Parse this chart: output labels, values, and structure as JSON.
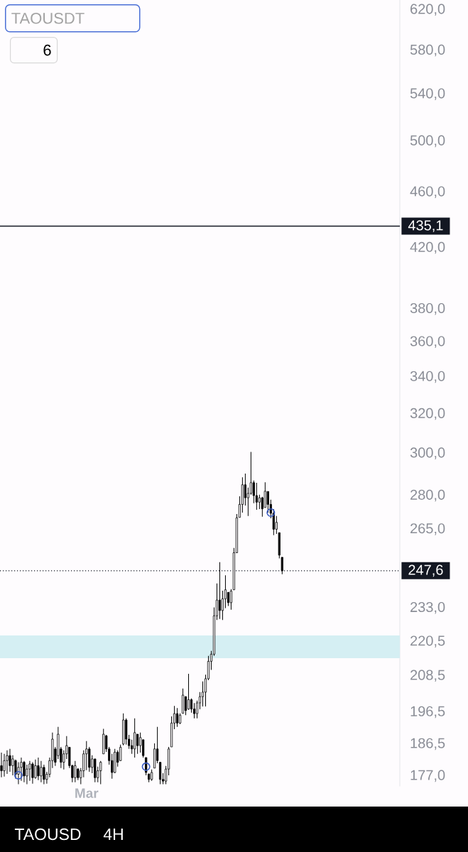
{
  "chart_data": {
    "type": "candlestick",
    "title": "TAOUSDT",
    "categories": [
      null,
      null,
      null,
      null,
      null,
      null,
      null,
      null,
      null,
      null,
      null,
      null,
      null,
      null,
      null,
      null,
      null,
      null,
      null,
      null,
      null,
      null,
      null,
      null,
      null,
      null,
      null,
      null,
      null,
      null,
      "Mar",
      null,
      null,
      null,
      null,
      null,
      null,
      null,
      null,
      null,
      null,
      null,
      null,
      null,
      null,
      null,
      null,
      null,
      null,
      null,
      null,
      null,
      null,
      null,
      null,
      null,
      null,
      null,
      null,
      null,
      null,
      null,
      null,
      null,
      null,
      null,
      null,
      null,
      null,
      null,
      null,
      null,
      null,
      null,
      null,
      null,
      null,
      null,
      null,
      null,
      null,
      null,
      null,
      null,
      null,
      null,
      null,
      null,
      null,
      null,
      null,
      null,
      null,
      null,
      null,
      null,
      null,
      null,
      null,
      null,
      null,
      null,
      null,
      null,
      null,
      null,
      null,
      null,
      null,
      null,
      null,
      null,
      null,
      null,
      null,
      null,
      null,
      null,
      null,
      null,
      null,
      null,
      null,
      null,
      null,
      null,
      null,
      null,
      null,
      null,
      null,
      null,
      null,
      null,
      null,
      null,
      null,
      null,
      null,
      null,
      null
    ],
    "color": "#000000",
    "ohlc": [
      [
        180.0,
        183.9,
        176.6,
        178.5
      ],
      [
        178.5,
        183.5,
        176.8,
        181.5
      ],
      [
        181.5,
        184.6,
        177.6,
        183.0
      ],
      [
        183.0,
        185.0,
        178.2,
        180.0
      ],
      [
        180.0,
        183.1,
        177.2,
        182.0
      ],
      [
        181.5,
        181.8,
        176.2,
        177.5
      ],
      [
        177.5,
        181.0,
        174.6,
        179.5
      ],
      [
        179.5,
        182.4,
        175.6,
        181.0
      ],
      [
        181.0,
        181.4,
        175.2,
        177.0
      ],
      [
        177.0,
        180.3,
        174.6,
        179.0
      ],
      [
        179.0,
        181.4,
        175.6,
        180.5
      ],
      [
        180.5,
        181.0,
        174.8,
        176.5
      ],
      [
        176.5,
        181.8,
        176.2,
        180.0
      ],
      [
        180.0,
        182.4,
        175.8,
        177.0
      ],
      [
        177.0,
        181.4,
        175.2,
        179.5
      ],
      [
        179.5,
        180.3,
        174.6,
        176.0
      ],
      [
        176.0,
        178.2,
        174.8,
        177.5
      ],
      [
        177.5,
        182.4,
        176.6,
        181.5
      ],
      [
        181.5,
        190.0,
        179.3,
        188.0
      ],
      [
        185.0,
        185.6,
        179.9,
        181.0
      ],
      [
        183.0,
        191.8,
        182.0,
        189.5
      ],
      [
        185.0,
        185.6,
        179.3,
        181.0
      ],
      [
        181.0,
        184.6,
        178.9,
        183.5
      ],
      [
        183.5,
        188.9,
        182.0,
        186.0
      ],
      [
        185.5,
        185.6,
        179.3,
        180.0
      ],
      [
        180.0,
        180.3,
        175.2,
        176.5
      ],
      [
        176.5,
        181.4,
        175.2,
        180.0
      ],
      [
        179.0,
        179.3,
        175.8,
        176.5
      ],
      [
        176.5,
        179.3,
        174.6,
        178.5
      ],
      [
        178.5,
        184.6,
        176.6,
        183.5
      ],
      [
        183.5,
        187.4,
        178.7,
        185.0
      ],
      [
        185.0,
        185.6,
        178.2,
        179.5
      ],
      [
        179.5,
        183.1,
        177.8,
        182.0
      ],
      [
        182.0,
        182.0,
        175.2,
        176.5
      ],
      [
        176.5,
        179.7,
        175.2,
        178.5
      ],
      [
        178.5,
        181.4,
        174.6,
        181.0
      ],
      [
        183.5,
        191.2,
        183.5,
        189.5
      ],
      [
        189.0,
        189.3,
        184.1,
        185.0
      ],
      [
        185.0,
        185.6,
        180.3,
        181.5
      ],
      [
        181.5,
        183.5,
        176.2,
        178.0
      ],
      [
        178.0,
        185.0,
        177.8,
        184.0
      ],
      [
        184.0,
        184.6,
        179.7,
        181.0
      ],
      [
        181.5,
        186.3,
        181.4,
        185.5
      ],
      [
        186.5,
        196.1,
        186.1,
        194.0
      ],
      [
        194.0,
        194.5,
        186.3,
        188.0
      ],
      [
        188.0,
        189.3,
        185.0,
        186.0
      ],
      [
        186.0,
        187.8,
        183.5,
        185.0
      ],
      [
        185.0,
        194.5,
        182.4,
        190.0
      ],
      [
        189.5,
        189.5,
        183.5,
        186.0
      ],
      [
        186.0,
        190.0,
        183.9,
        188.5
      ],
      [
        187.8,
        187.8,
        182.4,
        183.0
      ],
      [
        182.4,
        182.4,
        177.2,
        178.0
      ],
      [
        177.6,
        177.6,
        175.2,
        176.0
      ],
      [
        176.0,
        178.9,
        175.6,
        178.0
      ],
      [
        179.3,
        186.7,
        179.3,
        185.0
      ],
      [
        185.0,
        191.8,
        180.7,
        181.5
      ],
      [
        181.0,
        181.0,
        174.6,
        176.0
      ],
      [
        176.0,
        177.8,
        174.6,
        175.5
      ],
      [
        175.5,
        179.9,
        174.6,
        179.0
      ],
      [
        179.0,
        185.6,
        177.2,
        185.0
      ],
      [
        185.6,
        195.1,
        185.6,
        193.0
      ],
      [
        193.0,
        198.5,
        191.1,
        196.0
      ],
      [
        196.0,
        197.8,
        191.8,
        193.0
      ],
      [
        193.0,
        196.1,
        192.7,
        195.5
      ],
      [
        196.1,
        204.2,
        196.1,
        202.0
      ],
      [
        201.5,
        201.6,
        195.5,
        197.0
      ],
      [
        197.5,
        209.2,
        197.2,
        200.5
      ],
      [
        200.5,
        200.9,
        196.3,
        197.5
      ],
      [
        197.5,
        199.4,
        194.5,
        196.0
      ],
      [
        196.0,
        200.2,
        194.5,
        199.5
      ],
      [
        199.5,
        203.0,
        197.4,
        201.5
      ],
      [
        201.5,
        206.6,
        198.3,
        203.0
      ],
      [
        203.0,
        208.9,
        198.3,
        207.5
      ],
      [
        207.5,
        215.4,
        207.0,
        213.5
      ],
      [
        213.5,
        217.2,
        210.5,
        216.0
      ],
      [
        216.0,
        233.2,
        215.4,
        230.0
      ],
      [
        230.0,
        242.5,
        228.4,
        236.0
      ],
      [
        236.0,
        251.1,
        228.8,
        232.0
      ],
      [
        232.0,
        239.6,
        228.4,
        236.5
      ],
      [
        236.5,
        245.8,
        232.9,
        240.0
      ],
      [
        239.0,
        239.1,
        233.7,
        235.0
      ],
      [
        235.0,
        240.3,
        232.3,
        239.5
      ],
      [
        240.0,
        257.0,
        239.9,
        255.0
      ],
      [
        255.0,
        271.7,
        254.9,
        270.0
      ],
      [
        270.2,
        279.7,
        270.2,
        276.0
      ],
      [
        276.0,
        288.5,
        272.3,
        285.0
      ],
      [
        285.0,
        290.3,
        275.5,
        279.0
      ],
      [
        279.0,
        283.7,
        270.8,
        281.0
      ],
      [
        281.0,
        300.7,
        280.4,
        286.0
      ],
      [
        286.0,
        287.0,
        276.5,
        280.0
      ],
      [
        280.0,
        285.9,
        273.6,
        277.0
      ],
      [
        277.0,
        280.4,
        273.9,
        279.0
      ],
      [
        279.0,
        279.4,
        270.5,
        274.0
      ],
      [
        274.6,
        286.2,
        274.6,
        282.0
      ],
      [
        281.9,
        281.9,
        272.3,
        276.0
      ],
      [
        276.0,
        278.1,
        269.8,
        272.0
      ],
      [
        272.0,
        273.9,
        262.4,
        265.0
      ],
      [
        265.0,
        270.8,
        263.0,
        268.0
      ],
      [
        263.5,
        263.5,
        252.6,
        254.0
      ],
      [
        253.1,
        253.1,
        246.2,
        247.6
      ],
      null,
      null,
      null,
      null,
      null,
      null,
      null,
      null,
      null,
      null,
      null,
      null,
      null,
      null,
      null,
      null,
      null,
      null,
      null,
      null,
      null,
      null,
      null,
      null,
      null,
      null,
      null,
      null,
      null,
      null,
      null,
      null,
      null,
      null,
      null,
      null,
      null,
      null,
      null,
      null,
      null
    ],
    "series": [
      {
        "type": "scatter",
        "color": "#3a5cc4",
        "marker": "circle",
        "values": [
          null,
          null,
          null,
          null,
          null,
          null,
          177.2,
          null,
          null,
          null,
          null,
          null,
          null,
          null,
          null,
          null,
          null,
          null,
          null,
          null,
          null,
          null,
          null,
          null,
          null,
          null,
          null,
          null,
          null,
          null,
          null,
          null,
          null,
          null,
          null,
          null,
          null,
          null,
          null,
          null,
          null,
          null,
          null,
          null,
          null,
          null,
          null,
          null,
          null,
          null,
          null,
          179.7,
          null,
          null,
          null,
          null,
          null,
          null,
          null,
          null,
          null,
          null,
          null,
          null,
          null,
          null,
          null,
          null,
          null,
          null,
          null,
          null,
          null,
          null,
          null,
          null,
          null,
          null,
          null,
          null,
          null,
          null,
          null,
          null,
          null,
          null,
          null,
          null,
          null,
          null,
          null,
          null,
          null,
          null,
          null,
          272.3,
          null,
          null,
          null,
          null,
          null,
          null,
          null,
          null,
          null,
          null,
          null,
          null,
          null,
          null,
          null,
          null,
          null,
          null,
          null,
          null,
          null,
          null,
          null,
          null,
          null,
          null,
          null,
          null,
          null,
          null,
          null,
          null,
          null,
          null,
          null,
          null,
          null,
          null,
          null,
          null,
          null,
          null,
          null,
          null,
          null
        ]
      }
    ],
    "log": true,
    "ylim": [
      174,
      630
    ],
    "yticks": [
      {
        "value": 620,
        "label": "620,0"
      },
      {
        "value": 580,
        "label": "580,0"
      },
      {
        "value": 540,
        "label": "540,0"
      },
      {
        "value": 500,
        "label": "500,0"
      },
      {
        "value": 460,
        "label": "460,0"
      },
      {
        "value": 420,
        "label": "420,0"
      },
      {
        "value": 380,
        "label": "380,0"
      },
      {
        "value": 360,
        "label": "360,0"
      },
      {
        "value": 340,
        "label": "340,0"
      },
      {
        "value": 320,
        "label": "320,0"
      },
      {
        "value": 300,
        "label": "300,0"
      },
      {
        "value": 280,
        "label": "280,0"
      },
      {
        "value": 265,
        "label": "265,0"
      },
      {
        "value": 233,
        "label": "233,0"
      },
      {
        "value": 220.5,
        "label": "220,5"
      },
      {
        "value": 208.5,
        "label": "208,5"
      },
      {
        "value": 196.5,
        "label": "196,5"
      },
      {
        "value": 186.5,
        "label": "186,5"
      },
      {
        "value": 177,
        "label": "177,0"
      }
    ],
    "ref_lines": [
      {
        "axis": "y",
        "value": 435.1,
        "label": "435,1",
        "color": "#131722",
        "line_style": "solid"
      },
      {
        "axis": "y",
        "value": 247.6,
        "label": "247,6",
        "color": "#131722",
        "line_style": "dotted"
      }
    ],
    "bands": [
      {
        "axis": "y",
        "from": 214.6,
        "to": 222.7,
        "color": "#d5eff3"
      }
    ],
    "annotations": [
      "6",
      "TAOUSD",
      "4H"
    ]
  }
}
